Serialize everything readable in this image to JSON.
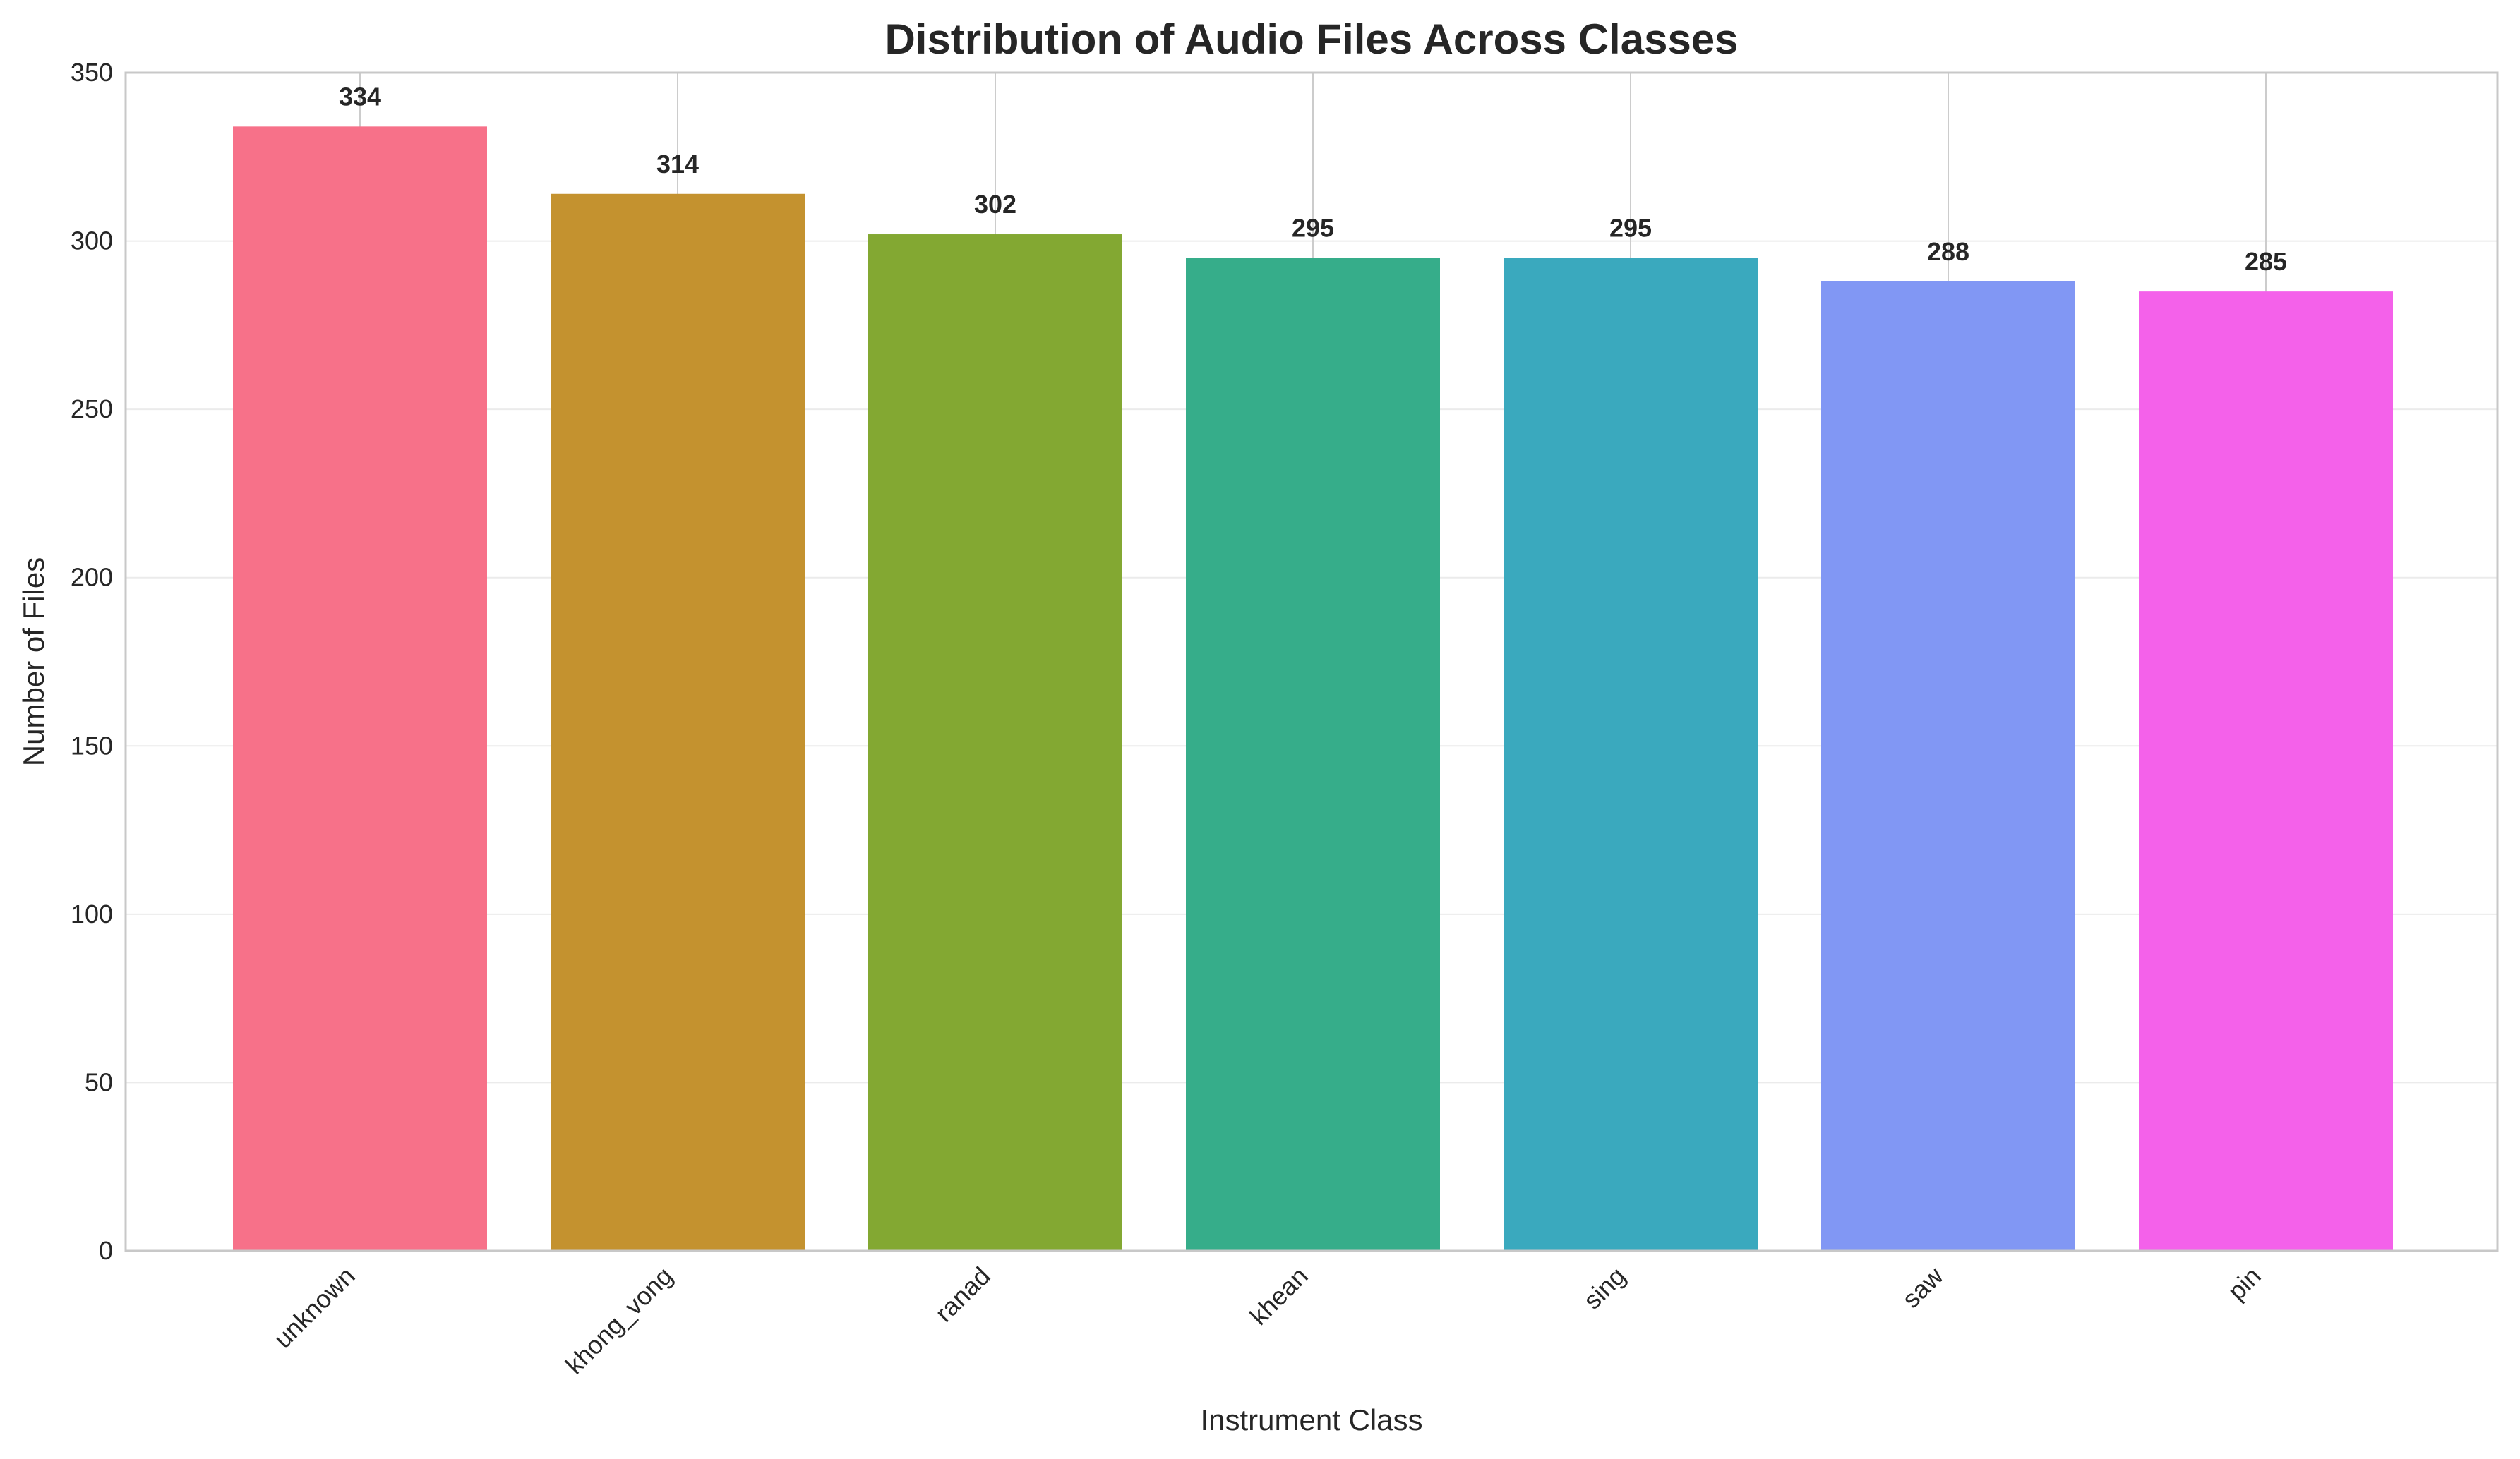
{
  "chart_data": {
    "type": "bar",
    "title": "Distribution of Audio Files Across Classes",
    "xlabel": "Instrument Class",
    "ylabel": "Number of Files",
    "categories": [
      "unknown",
      "khong_vong",
      "ranad",
      "khean",
      "sing",
      "saw",
      "pin"
    ],
    "values": [
      334,
      314,
      302,
      295,
      295,
      288,
      285
    ],
    "data_labels": [
      "334",
      "314",
      "302",
      "295",
      "295",
      "288",
      "285"
    ],
    "colors": [
      "#f77189",
      "#c4922f",
      "#83a832",
      "#36ad8a",
      "#3aa9be",
      "#8197f4",
      "#f461ea"
    ],
    "ylim": [
      0,
      350
    ],
    "yticks": [
      0,
      50,
      100,
      150,
      200,
      250,
      300,
      350
    ],
    "ytick_labels": [
      "0",
      "50",
      "100",
      "150",
      "200",
      "250",
      "300",
      "350"
    ],
    "grid": true,
    "legend": "none"
  }
}
